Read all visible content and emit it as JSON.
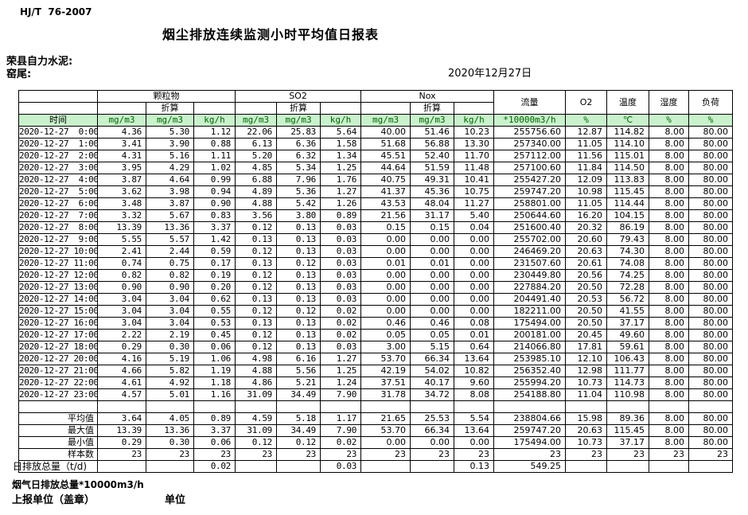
{
  "page": {
    "standard": "HJ/T  76-2007",
    "title": "烟尘排放连续监测小时平均值日报表",
    "company": "荣县自力水泥:",
    "location": "窑尾:",
    "date": "2020年12月27日"
  },
  "table": {
    "header": {
      "time": "时间",
      "groups": [
        "颗粒物",
        "SO2",
        "Nox"
      ],
      "converted": "折算",
      "singles": [
        "流量",
        "O2",
        "温度",
        "湿度",
        "负荷"
      ],
      "units": [
        "mg/m3",
        "mg/m3",
        "kg/h",
        "mg/m3",
        "mg/m3",
        "kg/h",
        "mg/m3",
        "mg/m3",
        "kg/h",
        "*10000m3/h",
        "%",
        "℃",
        "%",
        "%"
      ]
    },
    "rows": [
      {
        "time": "2020-12-27  0:00",
        "values": [
          "4.36",
          "5.30",
          "1.12",
          "22.06",
          "25.83",
          "5.64",
          "40.00",
          "51.46",
          "10.23",
          "255756.60",
          "12.87",
          "114.82",
          "8.00",
          "80.00"
        ]
      },
      {
        "time": "2020-12-27  1:00",
        "values": [
          "3.41",
          "3.90",
          "0.88",
          "6.13",
          "6.36",
          "1.58",
          "51.68",
          "56.88",
          "13.30",
          "257340.00",
          "11.05",
          "114.10",
          "8.00",
          "80.00"
        ]
      },
      {
        "time": "2020-12-27  2:00",
        "values": [
          "4.31",
          "5.16",
          "1.11",
          "5.20",
          "6.32",
          "1.34",
          "45.51",
          "52.40",
          "11.70",
          "257112.00",
          "11.56",
          "115.01",
          "8.00",
          "80.00"
        ]
      },
      {
        "time": "2020-12-27  3:00",
        "values": [
          "3.95",
          "4.29",
          "1.02",
          "4.85",
          "5.34",
          "1.25",
          "44.64",
          "51.59",
          "11.48",
          "257100.60",
          "11.84",
          "114.50",
          "8.00",
          "80.00"
        ]
      },
      {
        "time": "2020-12-27  4:00",
        "values": [
          "3.87",
          "4.64",
          "0.99",
          "6.88",
          "7.96",
          "1.76",
          "40.75",
          "49.31",
          "10.41",
          "255427.20",
          "12.09",
          "113.83",
          "8.00",
          "80.00"
        ]
      },
      {
        "time": "2020-12-27  5:00",
        "values": [
          "3.62",
          "3.98",
          "0.94",
          "4.89",
          "5.36",
          "1.27",
          "41.37",
          "45.36",
          "10.75",
          "259747.20",
          "10.98",
          "115.45",
          "8.00",
          "80.00"
        ]
      },
      {
        "time": "2020-12-27  6:00",
        "values": [
          "3.48",
          "3.87",
          "0.90",
          "4.88",
          "5.42",
          "1.26",
          "43.53",
          "48.04",
          "11.27",
          "258801.00",
          "11.05",
          "114.44",
          "8.00",
          "80.00"
        ]
      },
      {
        "time": "2020-12-27  7:00",
        "values": [
          "3.32",
          "5.67",
          "0.83",
          "3.56",
          "3.80",
          "0.89",
          "21.56",
          "31.17",
          "5.40",
          "250644.60",
          "16.20",
          "104.15",
          "8.00",
          "80.00"
        ]
      },
      {
        "time": "2020-12-27  8:00",
        "values": [
          "13.39",
          "13.36",
          "3.37",
          "0.12",
          "0.13",
          "0.03",
          "0.15",
          "0.15",
          "0.04",
          "251600.40",
          "20.32",
          "86.19",
          "8.00",
          "80.00"
        ]
      },
      {
        "time": "2020-12-27  9:00",
        "values": [
          "5.55",
          "5.57",
          "1.42",
          "0.13",
          "0.13",
          "0.03",
          "0.00",
          "0.00",
          "0.00",
          "255702.00",
          "20.60",
          "79.43",
          "8.00",
          "80.00"
        ]
      },
      {
        "time": "2020-12-27 10:00",
        "values": [
          "2.41",
          "2.44",
          "0.59",
          "0.12",
          "0.13",
          "0.03",
          "0.00",
          "0.00",
          "0.00",
          "246469.20",
          "20.63",
          "74.30",
          "8.00",
          "80.00"
        ]
      },
      {
        "time": "2020-12-27 11:00",
        "values": [
          "0.74",
          "0.75",
          "0.17",
          "0.13",
          "0.12",
          "0.03",
          "0.01",
          "0.01",
          "0.00",
          "231507.60",
          "20.61",
          "74.08",
          "8.00",
          "80.00"
        ]
      },
      {
        "time": "2020-12-27 12:00",
        "values": [
          "0.82",
          "0.82",
          "0.19",
          "0.12",
          "0.13",
          "0.03",
          "0.00",
          "0.00",
          "0.00",
          "230449.80",
          "20.56",
          "74.25",
          "8.00",
          "80.00"
        ]
      },
      {
        "time": "2020-12-27 13:00",
        "values": [
          "0.90",
          "0.90",
          "0.20",
          "0.12",
          "0.13",
          "0.03",
          "0.00",
          "0.00",
          "0.00",
          "227884.20",
          "20.50",
          "72.28",
          "8.00",
          "80.00"
        ]
      },
      {
        "time": "2020-12-27 14:00",
        "values": [
          "3.04",
          "3.04",
          "0.62",
          "0.13",
          "0.13",
          "0.03",
          "0.00",
          "0.00",
          "0.00",
          "204491.40",
          "20.53",
          "56.72",
          "8.00",
          "80.00"
        ]
      },
      {
        "time": "2020-12-27 15:00",
        "values": [
          "3.04",
          "3.04",
          "0.55",
          "0.12",
          "0.12",
          "0.02",
          "0.00",
          "0.00",
          "0.00",
          "182211.00",
          "20.50",
          "41.55",
          "8.00",
          "80.00"
        ]
      },
      {
        "time": "2020-12-27 16:00",
        "values": [
          "3.04",
          "3.04",
          "0.53",
          "0.13",
          "0.13",
          "0.02",
          "0.46",
          "0.46",
          "0.08",
          "175494.00",
          "20.50",
          "37.17",
          "8.00",
          "80.00"
        ]
      },
      {
        "time": "2020-12-27 17:00",
        "values": [
          "2.22",
          "2.19",
          "0.45",
          "0.12",
          "0.13",
          "0.02",
          "0.05",
          "0.05",
          "0.01",
          "200181.00",
          "20.45",
          "49.60",
          "8.00",
          "80.00"
        ]
      },
      {
        "time": "2020-12-27 18:00",
        "values": [
          "0.29",
          "0.30",
          "0.06",
          "0.12",
          "0.13",
          "0.03",
          "3.00",
          "5.15",
          "0.64",
          "214066.80",
          "17.81",
          "59.61",
          "8.00",
          "80.00"
        ]
      },
      {
        "time": "2020-12-27 20:00",
        "values": [
          "4.16",
          "5.19",
          "1.06",
          "4.98",
          "6.16",
          "1.27",
          "53.70",
          "66.34",
          "13.64",
          "253985.10",
          "12.10",
          "106.43",
          "8.00",
          "80.00"
        ]
      },
      {
        "time": "2020-12-27 21:00",
        "values": [
          "4.66",
          "5.82",
          "1.19",
          "4.88",
          "5.56",
          "1.25",
          "42.19",
          "54.02",
          "10.82",
          "256352.40",
          "12.98",
          "111.77",
          "8.00",
          "80.00"
        ]
      },
      {
        "time": "2020-12-27 22:00",
        "values": [
          "4.61",
          "4.92",
          "1.18",
          "4.86",
          "5.21",
          "1.24",
          "37.51",
          "40.17",
          "9.60",
          "255994.20",
          "10.73",
          "114.73",
          "8.00",
          "80.00"
        ]
      },
      {
        "time": "2020-12-27 23:00",
        "values": [
          "4.57",
          "5.01",
          "1.16",
          "31.09",
          "34.49",
          "7.90",
          "31.78",
          "34.72",
          "8.08",
          "254188.80",
          "11.04",
          "110.98",
          "8.00",
          "80.00"
        ]
      }
    ],
    "summary": [
      {
        "label": "平均值",
        "values": [
          "3.64",
          "4.05",
          "0.89",
          "4.59",
          "5.18",
          "1.17",
          "21.65",
          "25.53",
          "5.54",
          "238804.66",
          "15.98",
          "89.36",
          "8.00",
          "80.00"
        ]
      },
      {
        "label": "最大值",
        "values": [
          "13.39",
          "13.36",
          "3.37",
          "31.09",
          "34.49",
          "7.90",
          "53.70",
          "66.34",
          "13.64",
          "259747.20",
          "20.63",
          "115.45",
          "8.00",
          "80.00"
        ]
      },
      {
        "label": "最小值",
        "values": [
          "0.29",
          "0.30",
          "0.06",
          "0.12",
          "0.12",
          "0.02",
          "0.00",
          "0.00",
          "0.00",
          "175494.00",
          "10.73",
          "37.17",
          "8.00",
          "80.00"
        ]
      },
      {
        "label": "样本数",
        "values": [
          "23",
          "23",
          "23",
          "23",
          "23",
          "23",
          "23",
          "23",
          "23",
          "23",
          "23",
          "23",
          "23",
          "23"
        ]
      }
    ],
    "daily_total": {
      "label": "日排放总量（t/d)",
      "values": [
        "",
        "",
        "0.02",
        "",
        "",
        "0.03",
        "",
        "",
        "0.13",
        "549.25",
        "",
        "",
        "",
        ""
      ]
    }
  },
  "footer": {
    "flow_note": "烟气日排放总量*10000m3/h",
    "report_unit": "上报单位（盖章）",
    "unit": "单位"
  }
}
